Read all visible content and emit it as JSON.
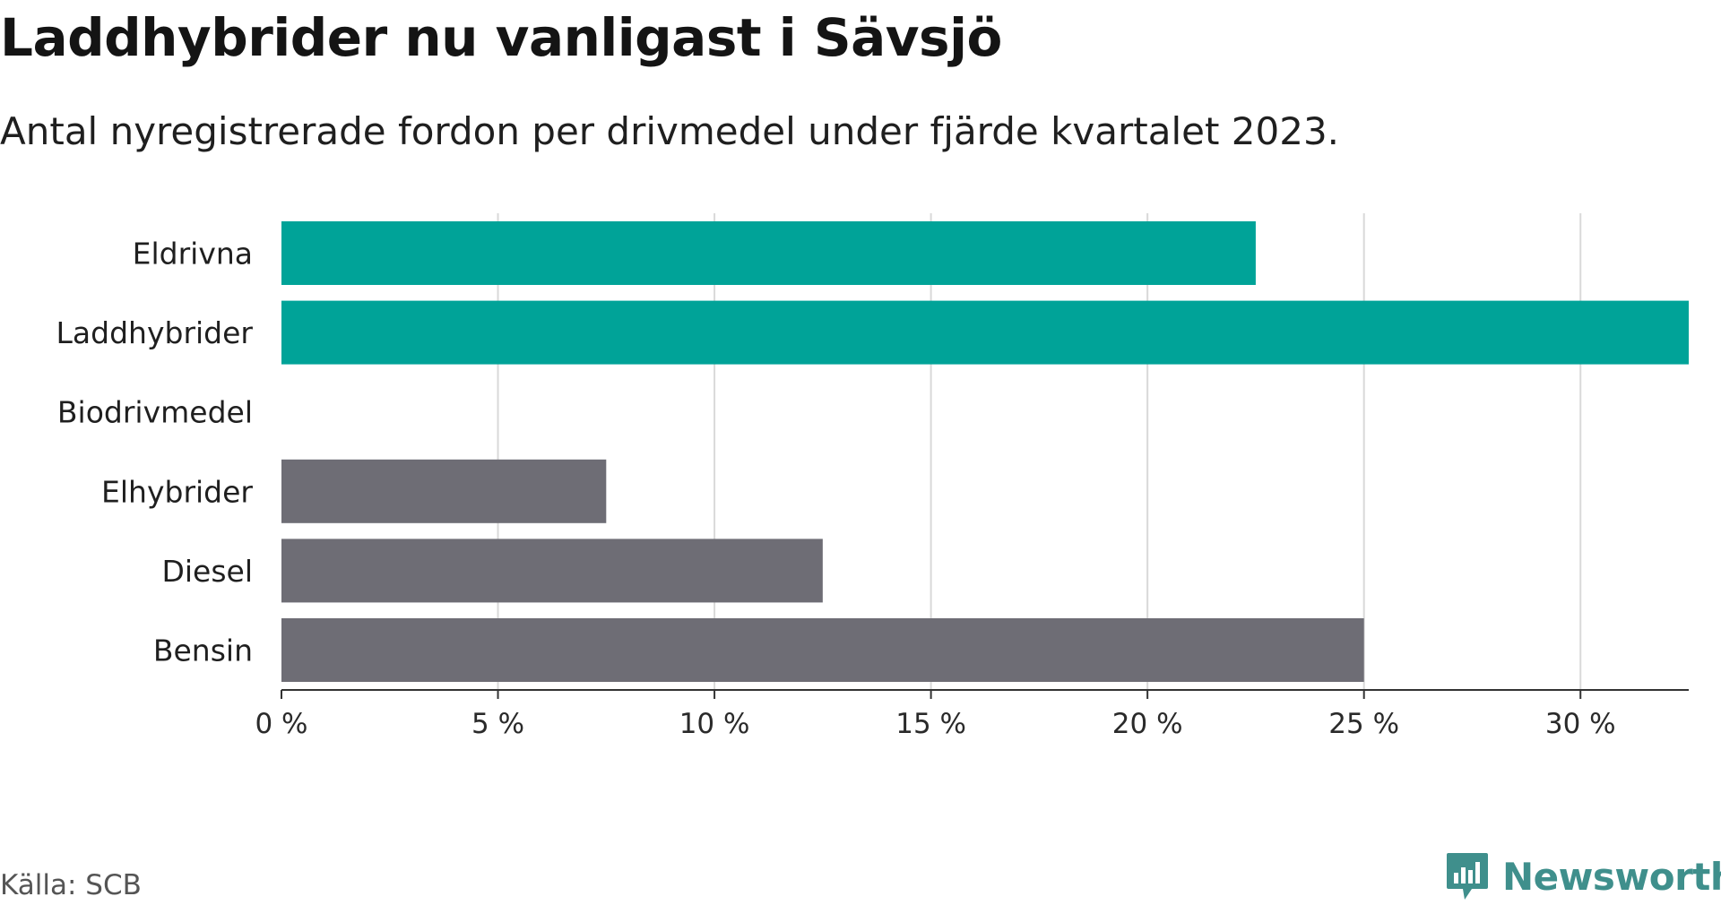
{
  "header": {
    "title": "Laddhybrider nu vanligast i Sävsjö",
    "subtitle": "Antal nyregistrerade fordon per drivmedel under fjärde kvartalet 2023."
  },
  "footer": {
    "source": "Källa: SCB",
    "brand": "Newsworthy"
  },
  "colors": {
    "highlight": "#00a398",
    "neutral": "#6e6d75",
    "grid": "#d9d9d9",
    "axis": "#333333",
    "brand": "#3f8f8c"
  },
  "chart_data": {
    "type": "bar",
    "orientation": "horizontal",
    "title": "Laddhybrider nu vanligast i Sävsjö",
    "subtitle": "Antal nyregistrerade fordon per drivmedel under fjärde kvartalet 2023.",
    "xlabel": "",
    "ylabel": "",
    "xlim": [
      0,
      32.5
    ],
    "x_ticks": [
      0,
      5,
      10,
      15,
      20,
      25,
      30
    ],
    "x_tick_labels": [
      "0 %",
      "5 %",
      "10 %",
      "15 %",
      "20 %",
      "25 %",
      "30 %"
    ],
    "grid": true,
    "categories": [
      "Eldrivna",
      "Laddhybrider",
      "Biodrivmedel",
      "Elhybrider",
      "Diesel",
      "Bensin"
    ],
    "values": [
      22.5,
      32.5,
      0,
      7.5,
      12.5,
      25
    ],
    "groups": [
      "highlight",
      "highlight",
      "highlight",
      "neutral",
      "neutral",
      "neutral"
    ]
  }
}
